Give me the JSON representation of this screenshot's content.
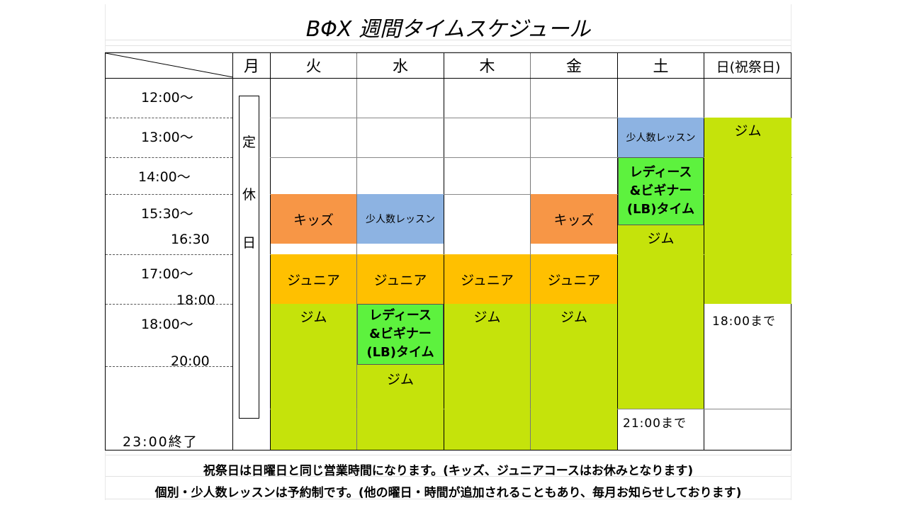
{
  "title": "ΒΦΧ 週間タイムスケジュール",
  "days": [
    "月",
    "火",
    "水",
    "木",
    "金",
    "土",
    "日(祝祭日)"
  ],
  "times": {
    "t1200": "12:00〜",
    "t1300": "13:00〜",
    "t1400": "14:00〜",
    "t1530": "15:30〜",
    "t1630": "16:30",
    "t1700": "17:00〜",
    "t1800end": "18:00",
    "t1800": "18:00〜",
    "t2000": "20:00",
    "t2300": "23:00終了"
  },
  "closed": [
    "定",
    "休",
    "日"
  ],
  "blocks": {
    "kids": "キッズ",
    "small_lesson": "少人数レッスン",
    "junior": "ジュニア",
    "gym": "ジム",
    "ladies_line1": "レディース",
    "ladies_line2": "&ビギナー",
    "ladies_line3": "(LB)タイム"
  },
  "until": {
    "sat": "21:00まで",
    "sun": "18:00まで"
  },
  "notes": [
    "祝祭日は日曜日と同じ営業時間になります。(キッズ、ジュニアコースはお休みとなります)",
    "個別・少人数レッスンは予約制です。(他の曜日・時間が追加されることもあり、毎月お知らせしております)"
  ]
}
